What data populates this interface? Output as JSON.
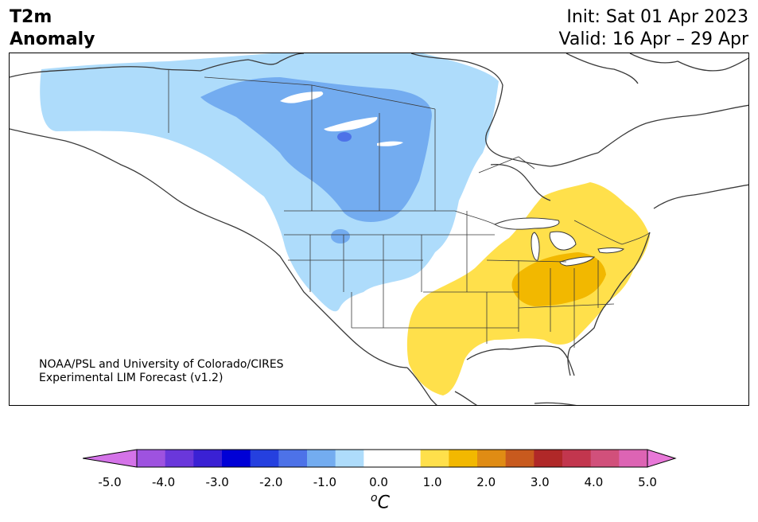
{
  "title": {
    "variable": "T2m",
    "subtitle": "Anomaly",
    "init": "Init: Sat 01 Apr 2023",
    "valid": "Valid: 16 Apr – 29 Apr"
  },
  "credit": {
    "line1": "NOAA/PSL and University of Colorado/CIRES",
    "line2": "Experimental LIM Forecast (v1.2)"
  },
  "colorbar": {
    "colors": [
      "#d473e8",
      "#9e52e0",
      "#6a37db",
      "#3a21d4",
      "#0000d6",
      "#2540df",
      "#4d72e8",
      "#73acf0",
      "#aedcfb",
      "#ffffff",
      "#ffffff",
      "#ffe04b",
      "#f2b800",
      "#e08c14",
      "#c85a1e",
      "#b02828",
      "#c2364e",
      "#d1507b",
      "#dd64b4",
      "#e878d8"
    ],
    "ticks": [
      "-5.0",
      "-4.0",
      "-3.0",
      "-2.0",
      "-1.0",
      "0.0",
      "1.0",
      "2.0",
      "3.0",
      "4.0",
      "5.0"
    ],
    "unit_symbol": "o",
    "unit_letter": "C"
  },
  "anomaly_colors": {
    "light_cold": "#aedcfb",
    "medium_cold": "#73acf0",
    "deep_cold": "#4d72e8",
    "light_warm": "#ffe04b",
    "medium_warm": "#f2b800",
    "lake": "#ffffff",
    "coast": "#3a3a3a"
  }
}
